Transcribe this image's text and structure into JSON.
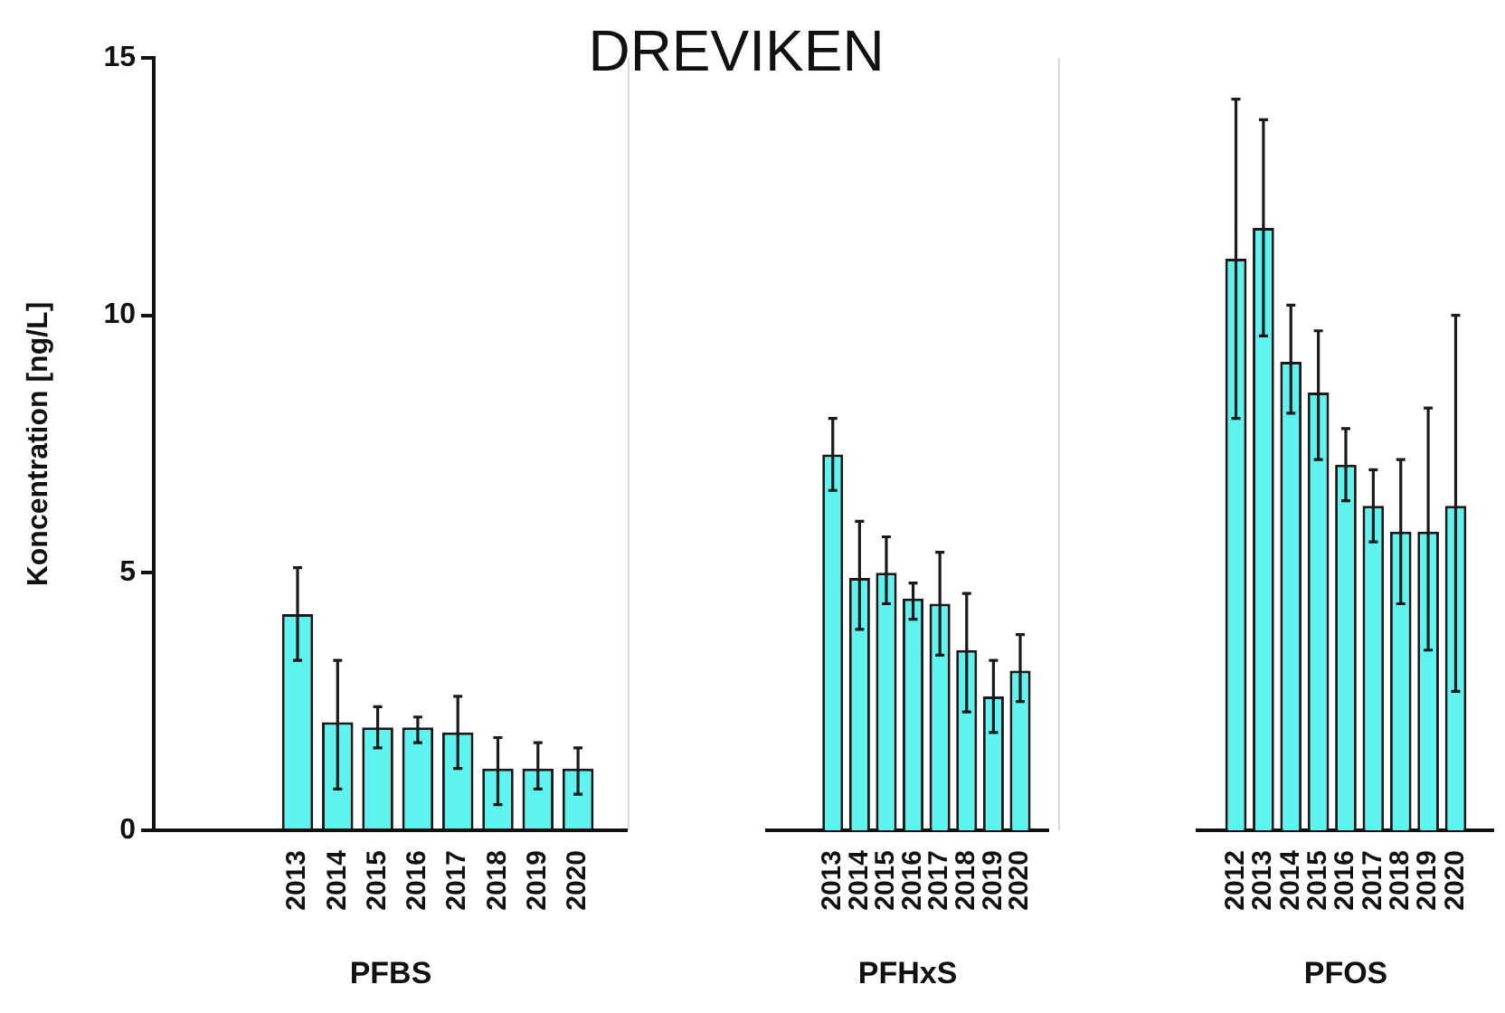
{
  "chart_data": [
    {
      "type": "bar",
      "xlabel": "PFBS",
      "ylabel": "Koncentration [ng/L]",
      "categories": [
        "2013",
        "2014",
        "2015",
        "2016",
        "2017",
        "2018",
        "2019",
        "2020"
      ],
      "color": "#5ff3ef",
      "values": [
        4.2,
        2.1,
        2.0,
        2.0,
        1.9,
        1.2,
        1.2,
        1.2
      ],
      "errors": [
        [
          3.3,
          5.1
        ],
        [
          0.8,
          3.3
        ],
        [
          1.6,
          2.4
        ],
        [
          1.7,
          2.2
        ],
        [
          1.2,
          2.6
        ],
        [
          0.5,
          1.8
        ],
        [
          0.8,
          1.7
        ],
        [
          0.7,
          1.6
        ]
      ],
      "ylim": [
        0,
        15
      ],
      "yticks": [
        0,
        5,
        10,
        15
      ]
    },
    {
      "type": "bar",
      "title": "DREVIKEN",
      "xlabel": "PFHxS",
      "categories": [
        "2013",
        "2014",
        "2015",
        "2016",
        "2017",
        "2018",
        "2019",
        "2020"
      ],
      "color": "#5ff3ef",
      "values": [
        7.3,
        4.9,
        5.0,
        4.5,
        4.4,
        3.5,
        2.6,
        3.1
      ],
      "errors": [
        [
          6.6,
          8.0
        ],
        [
          3.9,
          6.0
        ],
        [
          4.4,
          5.7
        ],
        [
          4.1,
          4.8
        ],
        [
          3.4,
          5.4
        ],
        [
          2.3,
          4.6
        ],
        [
          1.9,
          3.3
        ],
        [
          2.5,
          3.8
        ]
      ],
      "ylim": [
        0,
        15
      ],
      "yticks": [
        0,
        5,
        10,
        15
      ],
      "tick_labels": "x"
    },
    {
      "type": "bar",
      "xlabel": "PFOS",
      "categories": [
        "2012",
        "2013",
        "2014",
        "2015",
        "2016",
        "2017",
        "2018",
        "2019",
        "2020"
      ],
      "color": "#5ff3ef",
      "values": [
        11.1,
        11.7,
        9.1,
        8.5,
        7.1,
        6.3,
        5.8,
        5.8,
        6.3
      ],
      "errors": [
        [
          8.0,
          14.2
        ],
        [
          9.6,
          13.8
        ],
        [
          8.1,
          10.2
        ],
        [
          7.2,
          9.7
        ],
        [
          6.4,
          7.8
        ],
        [
          5.6,
          7.0
        ],
        [
          4.4,
          7.2
        ],
        [
          3.5,
          8.2
        ],
        [
          2.7,
          10.0
        ]
      ],
      "ylim": [
        0,
        15
      ],
      "yticks": [
        0,
        5,
        10,
        15
      ],
      "tick_labels": "x"
    }
  ]
}
